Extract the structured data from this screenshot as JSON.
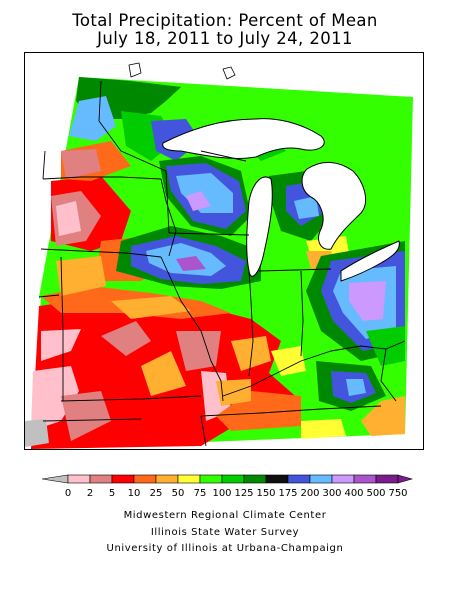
{
  "title": {
    "line1": "Total Precipitation: Percent of Mean",
    "line2": "July 18, 2011 to July 24, 2011"
  },
  "legend": {
    "unit": "percent of mean",
    "bins": [
      {
        "label": "0",
        "color": "#c0c0c0"
      },
      {
        "label": "2",
        "color": "#ffc0cb"
      },
      {
        "label": "5",
        "color": "#e08080"
      },
      {
        "label": "10",
        "color": "#ff0000"
      },
      {
        "label": "25",
        "color": "#ff6a1a"
      },
      {
        "label": "50",
        "color": "#ffb030"
      },
      {
        "label": "75",
        "color": "#ffff33"
      },
      {
        "label": "100",
        "color": "#33ff00"
      },
      {
        "label": "125",
        "color": "#00cc00"
      },
      {
        "label": "150",
        "color": "#008800"
      },
      {
        "label": "175",
        "color": "#0f0f0f"
      },
      {
        "label": "200",
        "color": "#4455dd"
      },
      {
        "label": "300",
        "color": "#66bbff"
      },
      {
        "label": "400",
        "color": "#cc99ff"
      },
      {
        "label": "500",
        "color": "#aa55cc"
      },
      {
        "label": "750",
        "color": "#7a1c8c"
      }
    ]
  },
  "colors": {
    "grey": "#c0c0c0",
    "pink": "#ffc0cb",
    "rose": "#e08080",
    "red": "#ff0000",
    "orange": "#ff6a1a",
    "light_orange": "#ffb030",
    "yellow": "#ffff33",
    "bright_green": "#33ff00",
    "green": "#00cc00",
    "dark_green": "#008800",
    "blue": "#4455dd",
    "light_blue": "#66bbff",
    "lavender": "#cc99ff",
    "purple": "#aa55cc",
    "water": "#ffffff"
  },
  "credits": [
    "Midwestern Regional Climate Center",
    "Illinois State Water Survey",
    "University of Illinois at Urbana-Champaign"
  ]
}
